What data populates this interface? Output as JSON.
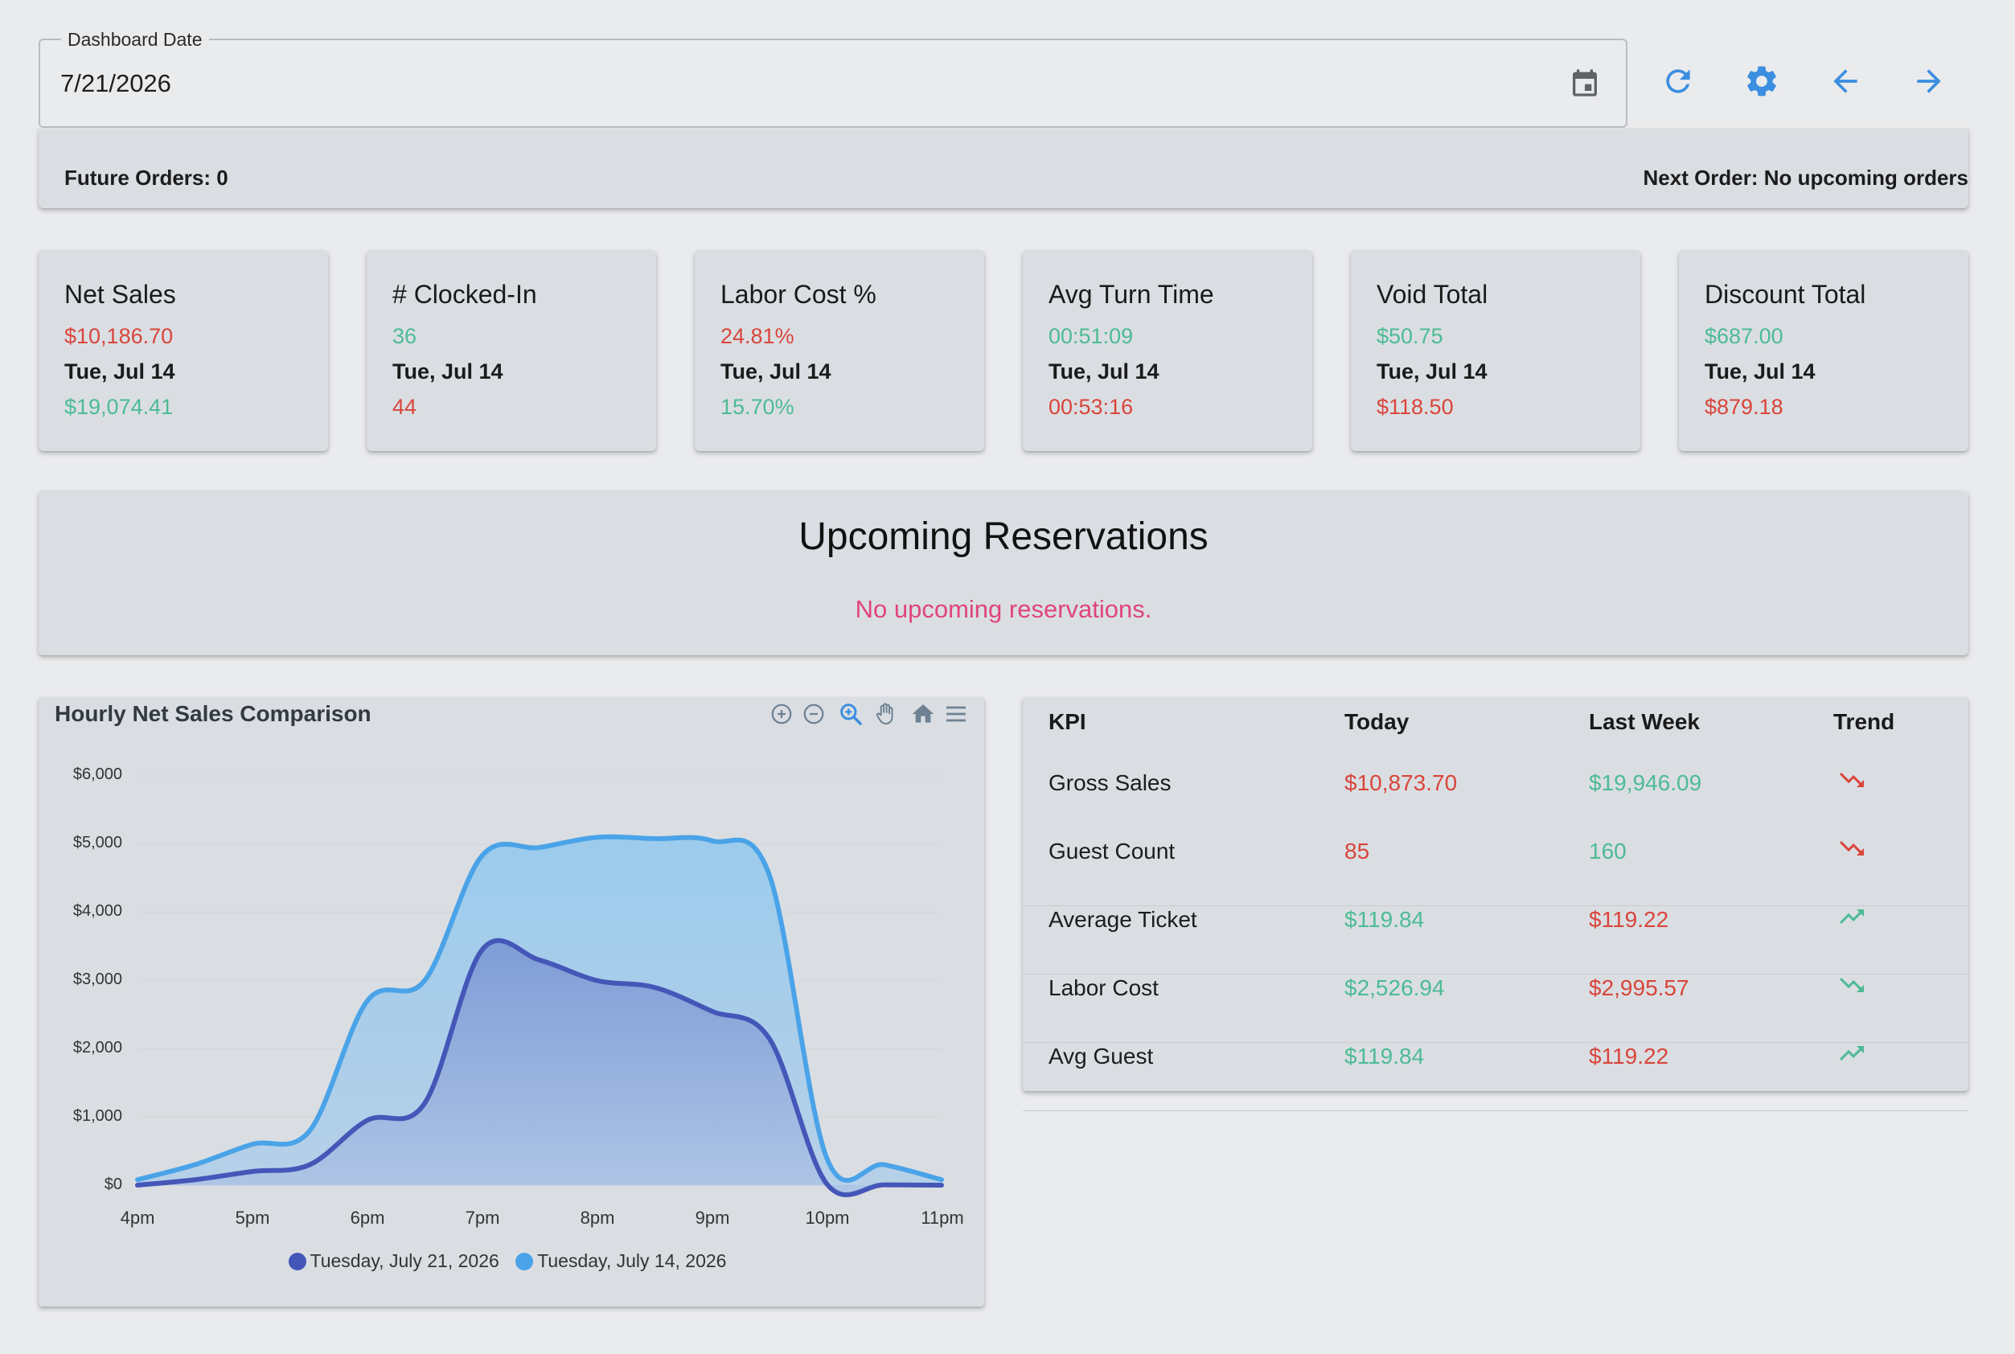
{
  "header": {
    "date_label": "Dashboard Date",
    "date_value": "7/21/2026"
  },
  "toolbar": {
    "icons": [
      "calendar-icon",
      "refresh-icon",
      "gear-icon",
      "arrow-left-icon",
      "arrow-right-icon"
    ],
    "accent": "#3b8ee0"
  },
  "orders": {
    "future": "Future Orders: 0",
    "next": "Next Order: No upcoming orders"
  },
  "kpis": [
    {
      "title": "Net Sales",
      "today": "$10,186.70",
      "today_status": "red",
      "date": "Tue, Jul 14",
      "last": "$19,074.41",
      "last_status": "green"
    },
    {
      "title": "# Clocked-In",
      "today": "36",
      "today_status": "green",
      "date": "Tue, Jul 14",
      "last": "44",
      "last_status": "red"
    },
    {
      "title": "Labor Cost %",
      "today": "24.81%",
      "today_status": "red",
      "date": "Tue, Jul 14",
      "last": "15.70%",
      "last_status": "green"
    },
    {
      "title": "Avg Turn Time",
      "today": "00:51:09",
      "today_status": "green",
      "date": "Tue, Jul 14",
      "last": "00:53:16",
      "last_status": "red"
    },
    {
      "title": "Void Total",
      "today": "$50.75",
      "today_status": "green",
      "date": "Tue, Jul 14",
      "last": "$118.50",
      "last_status": "red"
    },
    {
      "title": "Discount Total",
      "today": "$687.00",
      "today_status": "green",
      "date": "Tue, Jul 14",
      "last": "$879.18",
      "last_status": "red"
    }
  ],
  "reservations": {
    "title": "Upcoming Reservations",
    "empty_text": "No upcoming reservations."
  },
  "chart_toolbar": [
    "zoom-in-icon",
    "zoom-out-icon",
    "selection-zoom-icon",
    "pan-hand-icon",
    "home-reset-icon",
    "menu-icon"
  ],
  "chart_data": {
    "type": "area",
    "title": "Hourly Net Sales Comparison",
    "categories": [
      "4pm",
      "5pm",
      "6pm",
      "7pm",
      "8pm",
      "9pm",
      "10pm",
      "11pm"
    ],
    "y_ticks": [
      "$0",
      "$1,000",
      "$2,000",
      "$3,000",
      "$4,000",
      "$5,000",
      "$6,000"
    ],
    "ylim": [
      0,
      6000
    ],
    "series": [
      {
        "name": "Tuesday, July 21, 2026",
        "color": "#4457b8",
        "x": [
          4,
          4.5,
          5,
          5.5,
          6,
          6.5,
          7,
          7.5,
          8,
          8.5,
          9,
          9.5,
          10,
          10.5,
          11
        ],
        "y": [
          0,
          80,
          200,
          300,
          950,
          1200,
          3450,
          3300,
          3000,
          2900,
          2550,
          2150,
          20,
          5,
          0
        ]
      },
      {
        "name": "Tuesday, July 14, 2026",
        "color": "#4aa3e8",
        "x": [
          4,
          4.5,
          5,
          5.5,
          6,
          6.5,
          7,
          7.5,
          8,
          8.5,
          9,
          9.5,
          10,
          10.5,
          11
        ],
        "y": [
          80,
          300,
          600,
          800,
          2700,
          3000,
          4830,
          4950,
          5100,
          5080,
          5050,
          4550,
          400,
          300,
          80
        ]
      }
    ],
    "legend": "bottom-center",
    "grid": true
  },
  "kpi_table": {
    "headers": [
      "KPI",
      "Today",
      "Last Week",
      "Trend"
    ],
    "rows": [
      {
        "kpi": "Gross Sales",
        "today": "$10,873.70",
        "today_status": "red",
        "last": "$19,946.09",
        "last_status": "green",
        "trend": "trending-down-icon",
        "trend_color": "#d9453b"
      },
      {
        "kpi": "Guest Count",
        "today": "85",
        "today_status": "red",
        "last": "160",
        "last_status": "green",
        "trend": "trending-down-icon",
        "trend_color": "#d9453b"
      },
      {
        "kpi": "Average Ticket",
        "today": "$119.84",
        "today_status": "green",
        "last": "$119.22",
        "last_status": "red",
        "trend": "trending-up-icon",
        "trend_color": "#4dbb94"
      },
      {
        "kpi": "Labor Cost",
        "today": "$2,526.94",
        "today_status": "green",
        "last": "$2,995.57",
        "last_status": "red",
        "trend": "trending-down-icon",
        "trend_color": "#4dbb94"
      },
      {
        "kpi": "Avg Guest",
        "today": "$119.84",
        "today_status": "green",
        "last": "$119.22",
        "last_status": "red",
        "trend": "trending-up-icon",
        "trend_color": "#4dbb94"
      }
    ]
  }
}
